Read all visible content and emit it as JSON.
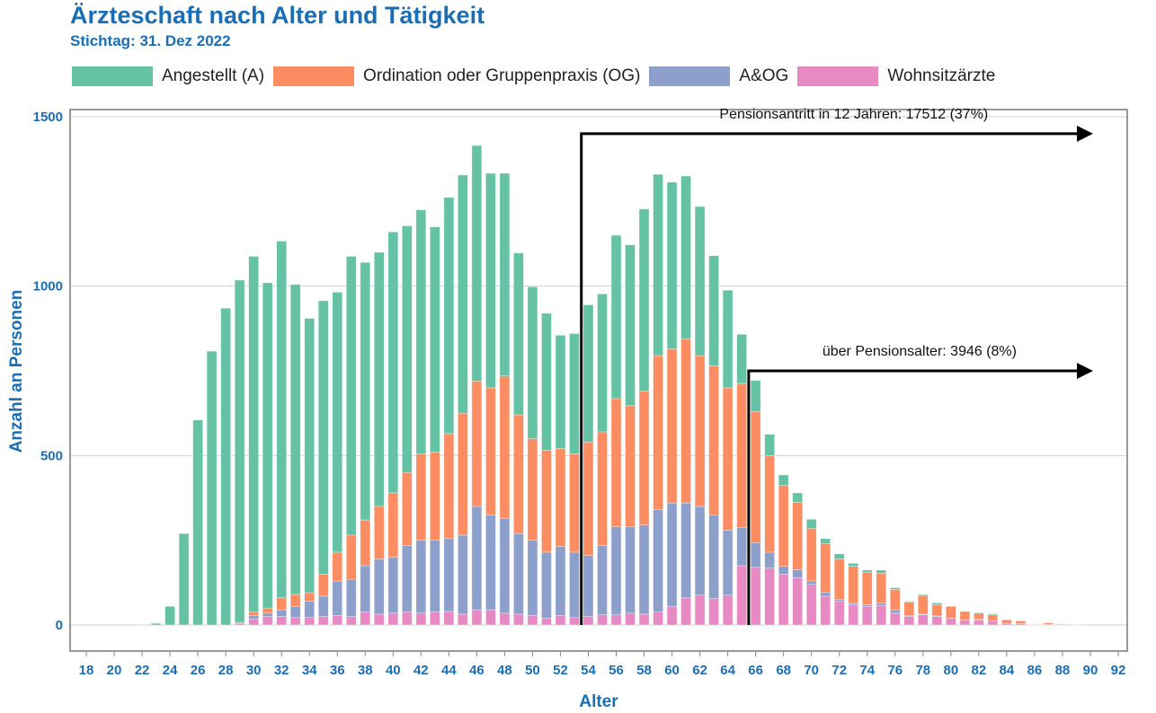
{
  "chart_data": {
    "type": "bar",
    "stacked": true,
    "title": "Ärzteschaft nach Alter und Tätigkeit",
    "subtitle": "Stichtag: 31. Dez 2022",
    "xlabel": "Alter",
    "ylabel": "Anzahl an Personen",
    "ylim": [
      0,
      1500
    ],
    "yticks": [
      0,
      500,
      1000,
      1500
    ],
    "xlim": [
      18,
      92
    ],
    "xticks": [
      18,
      20,
      22,
      24,
      26,
      28,
      30,
      32,
      34,
      36,
      38,
      40,
      42,
      44,
      46,
      48,
      50,
      52,
      54,
      56,
      58,
      60,
      62,
      64,
      66,
      68,
      70,
      72,
      74,
      76,
      78,
      80,
      82,
      84,
      86,
      88,
      90,
      92
    ],
    "grid": true,
    "legend_position": "top",
    "categories": [
      23,
      24,
      25,
      26,
      27,
      28,
      29,
      30,
      31,
      32,
      33,
      34,
      35,
      36,
      37,
      38,
      39,
      40,
      41,
      42,
      43,
      44,
      45,
      46,
      47,
      48,
      49,
      50,
      51,
      52,
      53,
      54,
      55,
      56,
      57,
      58,
      59,
      60,
      61,
      62,
      63,
      64,
      65,
      66,
      67,
      68,
      69,
      70,
      71,
      72,
      73,
      74,
      75,
      76,
      77,
      78,
      79,
      80,
      81,
      82,
      83,
      84,
      85,
      86,
      87,
      88,
      89
    ],
    "series": [
      {
        "name": "Wohnsitzärzte",
        "color": "#e78ac3",
        "values": [
          0,
          0,
          0,
          0,
          0,
          0,
          5,
          18,
          25,
          25,
          22,
          22,
          25,
          28,
          25,
          38,
          32,
          35,
          38,
          35,
          38,
          40,
          32,
          45,
          45,
          35,
          32,
          28,
          20,
          28,
          22,
          25,
          30,
          30,
          35,
          32,
          38,
          55,
          80,
          88,
          78,
          88,
          175,
          170,
          168,
          150,
          140,
          120,
          85,
          70,
          60,
          55,
          58,
          35,
          25,
          30,
          25,
          20,
          15,
          15,
          13,
          5,
          4,
          1,
          2,
          1,
          0
        ]
      },
      {
        "name": "A&OG",
        "color": "#8da0cb",
        "values": [
          0,
          0,
          0,
          0,
          0,
          0,
          0,
          10,
          10,
          20,
          33,
          48,
          60,
          102,
          110,
          137,
          163,
          165,
          197,
          215,
          212,
          215,
          233,
          305,
          280,
          280,
          238,
          222,
          195,
          204,
          193,
          180,
          205,
          260,
          255,
          263,
          302,
          305,
          280,
          262,
          247,
          192,
          113,
          73,
          47,
          23,
          23,
          10,
          12,
          5,
          5,
          5,
          7,
          10,
          3,
          2,
          2,
          0,
          0,
          2,
          0,
          0,
          0,
          0,
          0,
          0,
          0
        ]
      },
      {
        "name": "Ordination oder Gruppenpraxis (OG)",
        "color": "#fc8d62",
        "values": [
          0,
          0,
          0,
          0,
          0,
          0,
          3,
          10,
          15,
          35,
          35,
          25,
          65,
          85,
          130,
          135,
          155,
          190,
          215,
          255,
          260,
          310,
          360,
          370,
          375,
          420,
          350,
          300,
          300,
          288,
          290,
          335,
          335,
          378,
          357,
          395,
          455,
          455,
          485,
          445,
          440,
          420,
          425,
          387,
          285,
          239,
          199,
          155,
          143,
          120,
          108,
          95,
          88,
          60,
          40,
          55,
          33,
          35,
          25,
          18,
          17,
          10,
          8,
          1,
          4,
          2,
          1
        ]
      },
      {
        "name": "Angestellt (A)",
        "color": "#66c2a5",
        "values": [
          5,
          55,
          270,
          605,
          808,
          935,
          1010,
          1050,
          960,
          1053,
          915,
          810,
          807,
          767,
          823,
          760,
          750,
          770,
          728,
          720,
          665,
          697,
          703,
          695,
          633,
          598,
          478,
          448,
          405,
          335,
          355,
          405,
          407,
          482,
          475,
          538,
          535,
          492,
          480,
          440,
          325,
          288,
          145,
          92,
          63,
          31,
          28,
          27,
          15,
          15,
          9,
          7,
          9,
          5,
          2,
          3,
          5,
          0,
          0,
          2,
          3,
          0,
          0,
          0,
          0,
          0,
          0
        ]
      }
    ],
    "annotations": [
      {
        "text": "Pensionsantritt in 12 Jahren: 17512 (37%)",
        "from_age": 53.5,
        "to_age": 90,
        "level": 1450
      },
      {
        "text": "über Pensionsalter: 3946 (8%)",
        "from_age": 65.5,
        "to_age": 90,
        "level": 750
      }
    ]
  },
  "legend": [
    {
      "label": "Angestellt (A)",
      "color": "#66c2a5"
    },
    {
      "label": "Ordination oder Gruppenpraxis (OG)",
      "color": "#fc8d62"
    },
    {
      "label": "A&OG",
      "color": "#8da0cb"
    },
    {
      "label": "Wohnsitzärzte",
      "color": "#e78ac3"
    }
  ]
}
